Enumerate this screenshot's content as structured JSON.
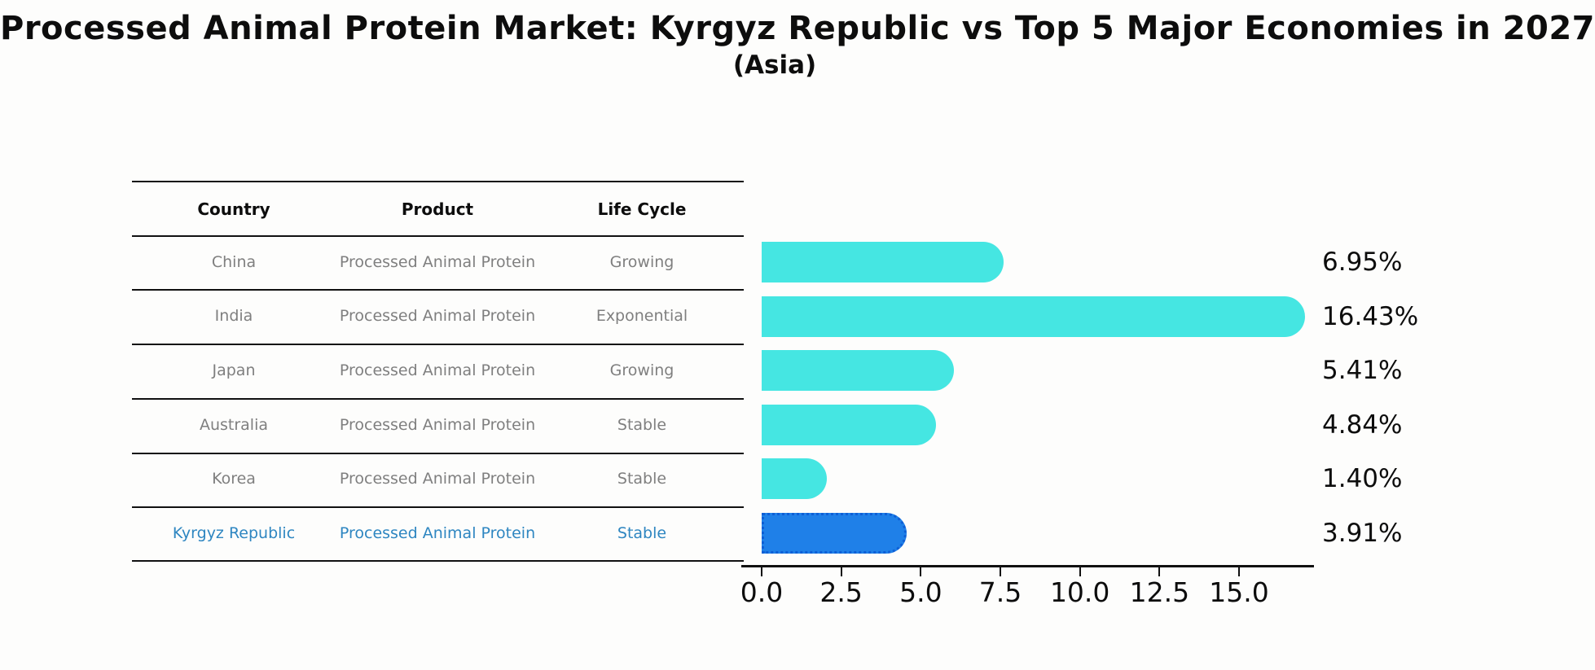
{
  "title": "Processed Animal Protein Market: Kyrgyz Republic vs Top 5 Major Economies in 2027",
  "subtitle": "(Asia)",
  "table": {
    "headers": [
      "Country",
      "Product",
      "Life Cycle"
    ],
    "rows": [
      {
        "country": "China",
        "product": "Processed Animal Protein",
        "life_cycle": "Growing"
      },
      {
        "country": "India",
        "product": "Processed Animal Protein",
        "life_cycle": "Exponential"
      },
      {
        "country": "Japan",
        "product": "Processed Animal Protein",
        "life_cycle": "Growing"
      },
      {
        "country": "Australia",
        "product": "Processed Animal Protein",
        "life_cycle": "Stable"
      },
      {
        "country": "Korea",
        "product": "Processed Animal Protein",
        "life_cycle": "Stable"
      },
      {
        "country": "Kyrgyz Republic",
        "product": "Processed Animal Protein",
        "life_cycle": "Stable"
      }
    ]
  },
  "chart_data": {
    "type": "bar",
    "orientation": "horizontal",
    "categories": [
      "China",
      "India",
      "Japan",
      "Australia",
      "Korea",
      "Kyrgyz Republic"
    ],
    "values": [
      6.95,
      16.43,
      5.41,
      4.84,
      1.4,
      3.91
    ],
    "value_labels": [
      "6.95%",
      "16.43%",
      "5.41%",
      "4.84%",
      "1.40%",
      "3.91%"
    ],
    "x_ticks": [
      "0.0",
      "2.5",
      "5.0",
      "7.5",
      "10.0",
      "12.5",
      "15.0"
    ],
    "x_tick_values": [
      0,
      2.5,
      5,
      7.5,
      10,
      12.5,
      15
    ],
    "xlim": [
      0,
      17.3
    ],
    "grid": false,
    "legend": "none",
    "bar_color": "#45E6E2",
    "highlight_color": "#1F80E8",
    "highlight_edge_color": "#0E5FD6",
    "highlight_index": 5,
    "highlight_text_color": "#2E86C1"
  }
}
